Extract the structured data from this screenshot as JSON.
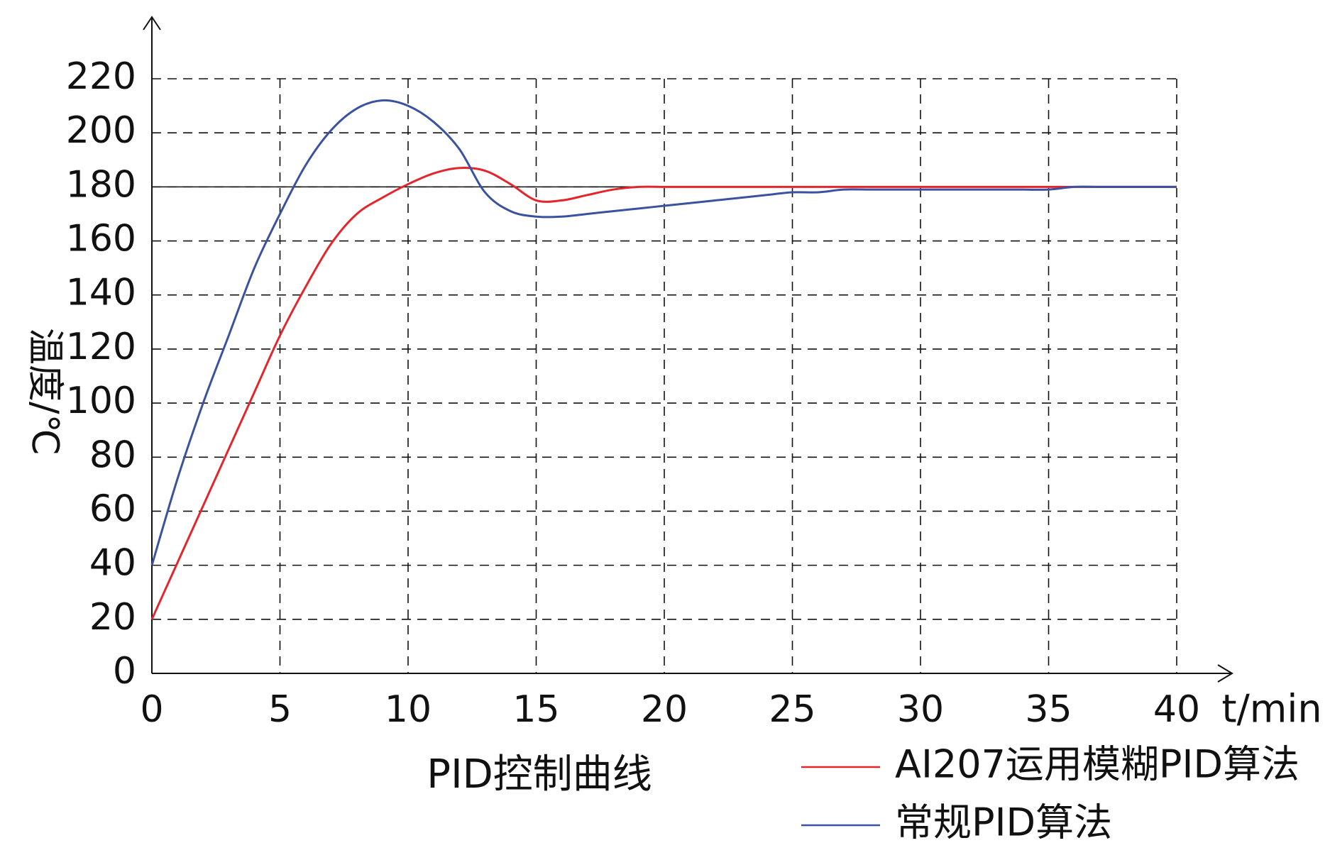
{
  "chart_data": {
    "type": "line",
    "title": "PID控制曲线",
    "xlabel": "t/min",
    "ylabel": "温度/℃",
    "x": [
      0,
      1,
      2,
      3,
      4,
      5,
      6,
      7,
      8,
      9,
      10,
      11,
      12,
      13,
      14,
      15,
      16,
      17,
      18,
      19,
      20,
      21,
      22,
      23,
      24,
      25,
      26,
      27,
      28,
      29,
      30,
      31,
      32,
      33,
      34,
      35,
      36,
      37,
      38,
      39,
      40
    ],
    "series": [
      {
        "name": "AI207运用模糊PID算法",
        "color": "#e3262c",
        "values": [
          20,
          41,
          62,
          83,
          104,
          125,
          143,
          159,
          170,
          176,
          181,
          185,
          187,
          186,
          181,
          175,
          175,
          177,
          179,
          180,
          180,
          180,
          180,
          180,
          180,
          180,
          180,
          180,
          180,
          180,
          180,
          180,
          180,
          180,
          180,
          180,
          180,
          180,
          180,
          180,
          180
        ]
      },
      {
        "name": "常规PID算法",
        "color": "#3a52a0",
        "values": [
          40,
          72,
          100,
          125,
          150,
          170,
          188,
          201,
          209,
          212,
          210,
          204,
          194,
          178,
          171,
          169,
          169,
          170,
          171,
          172,
          173,
          174,
          175,
          176,
          177,
          178,
          178,
          179,
          179,
          179,
          179,
          179,
          179,
          179,
          179,
          179,
          180,
          180,
          180,
          180,
          180
        ]
      }
    ],
    "reference_line": 180,
    "xlim": [
      0,
      40
    ],
    "xticks": [
      0,
      5,
      10,
      15,
      20,
      25,
      30,
      35,
      40
    ],
    "ylim": [
      0,
      220
    ],
    "yticks": [
      0,
      20,
      40,
      60,
      80,
      100,
      120,
      140,
      160,
      180,
      200,
      220
    ],
    "grid": true,
    "legend": "lower right"
  }
}
